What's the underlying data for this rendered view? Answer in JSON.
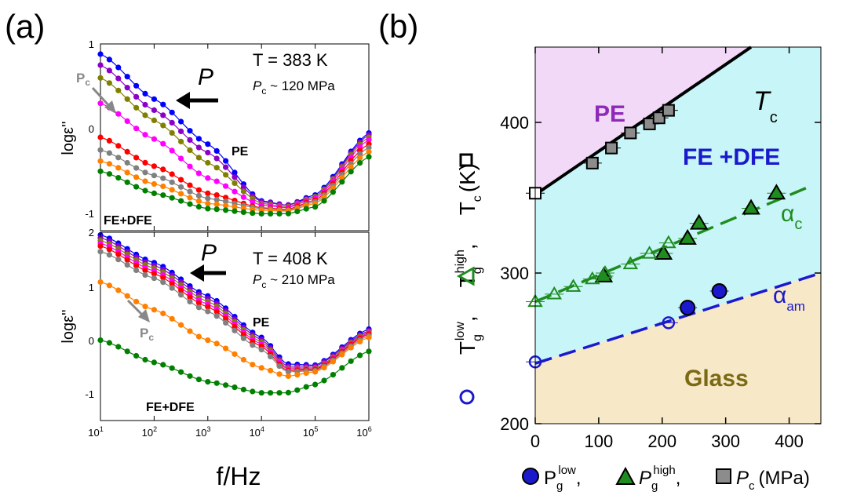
{
  "panel_labels": {
    "a": "(a)",
    "b": "(b)"
  },
  "colors": {
    "pe_region": "#f2d9f7",
    "fe_region": "#c8f5f7",
    "glass_region": "#f7e8c8",
    "alpha_c": "#1e8c1e",
    "alpha_am": "#1a1acc",
    "pc_series": "#8c8c8c",
    "label_pe": "#8e2ab8",
    "label_fe": "#1a1acc",
    "label_glass": "#7a6a14",
    "arrow_gray": "#888888"
  },
  "panel_a": {
    "xlabel": "f/Hz",
    "ylabel": "logε''",
    "x_ticks": [
      {
        "p": "10",
        "e": "1"
      },
      {
        "p": "10",
        "e": "2"
      },
      {
        "p": "10",
        "e": "3"
      },
      {
        "p": "10",
        "e": "4"
      },
      {
        "p": "10",
        "e": "5"
      },
      {
        "p": "10",
        "e": "6"
      }
    ],
    "top": {
      "temp": "T = 383 K",
      "p_symbol": "P",
      "pc_symbol": "P",
      "pc_sub": "c",
      "pc_value": " ~ 120 MPa",
      "arrow_label": "P",
      "arrow_label_sub": "c",
      "pe": "PE",
      "fe": "FE+DFE",
      "y_ticks": [
        "1",
        "0",
        "-1"
      ]
    },
    "bottom": {
      "temp": "T = 408 K",
      "p_symbol": "P",
      "pc_symbol": "P",
      "pc_sub": "c",
      "pc_value": " ~ 210 MPa",
      "arrow_label": "P",
      "arrow_label_sub": "c",
      "pe": "PE",
      "fe": "FE+DFE",
      "y_ticks": [
        "2",
        "1",
        "0",
        "-1"
      ]
    }
  },
  "panel_b": {
    "pe": "PE",
    "fe": "FE +DFE",
    "glass": "Glass",
    "tc_symbol": "T",
    "tc_sub": "c",
    "alpha_c": "α",
    "alpha_c_sub": "c",
    "alpha_am": "α",
    "alpha_am_sub": "am",
    "y_ticks": [
      "200",
      "300",
      "400"
    ],
    "x_ticks": [
      "0",
      "100",
      "200",
      "300",
      "400"
    ],
    "ylabel": {
      "t1": "T",
      "t1_sub": "g",
      "t1_sup": "low",
      "t2": "T",
      "t2_sub": "g",
      "t2_sup": "high",
      "t3": "T",
      "t3_sub": "c",
      "t3_unit": "(K)",
      "sep": ","
    },
    "xlabel": {
      "p1": "P",
      "p1_sub": "g",
      "p1_sup": "low",
      "p2": "P",
      "p2_sub": "g",
      "p2_sup": "high",
      "p3": "P",
      "p3_sub": "c",
      "unit": "(MPa)",
      "sep": ","
    }
  },
  "chart_data": [
    {
      "type": "line",
      "panel": "(a) top",
      "xlabel": "f/Hz",
      "ylabel": "logε''",
      "xscale": "log",
      "xlim": [
        10,
        1000000
      ],
      "ylim": [
        -1.2,
        1.0
      ],
      "annotations": [
        "T = 383 K",
        "P",
        "Pc ~ 120 MPa",
        "Pc",
        "PE",
        "FE+DFE"
      ],
      "series": [
        {
          "color": "#0000ff",
          "x": [
            10,
            100,
            1000,
            10000,
            30000,
            100000,
            1000000
          ],
          "y": [
            0.88,
            0.35,
            -0.18,
            -0.85,
            -0.9,
            -0.78,
            -0.05
          ]
        },
        {
          "color": "#8b00c9",
          "x": [
            10,
            100,
            1000,
            10000,
            30000,
            100000,
            1000000
          ],
          "y": [
            0.75,
            0.22,
            -0.28,
            -0.86,
            -0.9,
            -0.8,
            -0.07
          ]
        },
        {
          "color": "#808000",
          "x": [
            10,
            100,
            1000,
            10000,
            30000,
            100000,
            1000000
          ],
          "y": [
            0.6,
            0.1,
            -0.4,
            -0.88,
            -0.92,
            -0.8,
            -0.1
          ]
        },
        {
          "color": "#ff00ff",
          "x": [
            10,
            100,
            1000,
            10000,
            30000,
            100000,
            1000000
          ],
          "y": [
            0.3,
            -0.12,
            -0.58,
            -0.9,
            -0.93,
            -0.82,
            -0.13
          ]
        },
        {
          "color": "#ff0000",
          "x": [
            10,
            100,
            1000,
            10000,
            30000,
            100000,
            1000000
          ],
          "y": [
            -0.1,
            -0.44,
            -0.76,
            -0.93,
            -0.95,
            -0.84,
            -0.18
          ]
        },
        {
          "color": "#808080",
          "x": [
            10,
            100,
            1000,
            10000,
            30000,
            100000,
            1000000
          ],
          "y": [
            -0.25,
            -0.55,
            -0.82,
            -0.94,
            -0.96,
            -0.86,
            -0.22
          ]
        },
        {
          "color": "#ff8000",
          "x": [
            10,
            100,
            1000,
            10000,
            30000,
            100000,
            1000000
          ],
          "y": [
            -0.38,
            -0.65,
            -0.88,
            -0.96,
            -0.97,
            -0.88,
            -0.27
          ]
        },
        {
          "color": "#008000",
          "x": [
            10,
            100,
            1000,
            10000,
            30000,
            100000,
            1000000
          ],
          "y": [
            -0.5,
            -0.76,
            -0.94,
            -1.0,
            -1.0,
            -0.92,
            -0.33
          ]
        }
      ]
    },
    {
      "type": "line",
      "panel": "(a) bottom",
      "xlabel": "f/Hz",
      "ylabel": "logε''",
      "xscale": "log",
      "xlim": [
        10,
        1000000
      ],
      "ylim": [
        -1.4,
        2.0
      ],
      "annotations": [
        "T = 408 K",
        "P",
        "Pc ~ 210 MPa",
        "Pc",
        "PE",
        "FE+DFE"
      ],
      "series": [
        {
          "color": "#0000ff",
          "x": [
            10,
            100,
            1000,
            10000,
            30000,
            100000,
            1000000
          ],
          "y": [
            1.95,
            1.45,
            0.85,
            0.1,
            -0.38,
            -0.4,
            0.25
          ]
        },
        {
          "color": "#8b00c9",
          "x": [
            10,
            100,
            1000,
            10000,
            30000,
            100000,
            1000000
          ],
          "y": [
            1.9,
            1.4,
            0.8,
            0.06,
            -0.42,
            -0.42,
            0.22
          ]
        },
        {
          "color": "#808000",
          "x": [
            10,
            100,
            1000,
            10000,
            30000,
            100000,
            1000000
          ],
          "y": [
            1.85,
            1.35,
            0.75,
            0.02,
            -0.45,
            -0.45,
            0.2
          ]
        },
        {
          "color": "#ff00ff",
          "x": [
            10,
            100,
            1000,
            10000,
            30000,
            100000,
            1000000
          ],
          "y": [
            1.8,
            1.3,
            0.7,
            -0.02,
            -0.47,
            -0.47,
            0.18
          ]
        },
        {
          "color": "#ff0000",
          "x": [
            10,
            100,
            1000,
            10000,
            30000,
            100000,
            1000000
          ],
          "y": [
            1.75,
            1.25,
            0.65,
            -0.06,
            -0.5,
            -0.48,
            0.16
          ]
        },
        {
          "color": "#808080",
          "x": [
            10,
            100,
            1000,
            10000,
            30000,
            100000,
            1000000
          ],
          "y": [
            1.65,
            1.17,
            0.57,
            -0.12,
            -0.52,
            -0.5,
            0.13
          ]
        },
        {
          "color": "#ff8000",
          "x": [
            10,
            100,
            1000,
            10000,
            30000,
            100000,
            1000000
          ],
          "y": [
            1.1,
            0.6,
            0.05,
            -0.45,
            -0.6,
            -0.52,
            0.1
          ]
        },
        {
          "color": "#008000",
          "x": [
            10,
            100,
            1000,
            10000,
            30000,
            100000,
            1000000
          ],
          "y": [
            0.05,
            -0.35,
            -0.7,
            -0.9,
            -0.9,
            -0.75,
            -0.15
          ]
        }
      ]
    },
    {
      "type": "scatter",
      "panel": "(b)",
      "xlabel": "Pglow, Pghigh, Pc (MPa)",
      "ylabel": "Tglow, Tghigh, Tc (K)",
      "xlim": [
        0,
        450
      ],
      "ylim": [
        200,
        450
      ],
      "regions": [
        "PE",
        "FE +DFE",
        "Glass"
      ],
      "annotations": [
        "Tc",
        "αc",
        "αam"
      ],
      "series": [
        {
          "marker": "square",
          "filled": true,
          "color": "#8c8c8c",
          "x": [
            90,
            120,
            150,
            180,
            195,
            210
          ],
          "y": [
            373,
            383,
            393,
            399,
            403,
            408
          ]
        },
        {
          "marker": "square",
          "filled": false,
          "color": "#000000",
          "x": [
            0
          ],
          "y": [
            353
          ]
        },
        {
          "marker": "triangle",
          "filled": true,
          "color": "#1e8c1e",
          "x": [
            108,
            202,
            240,
            258,
            340,
            380
          ],
          "y": [
            298,
            313,
            323,
            333,
            343,
            353
          ]
        },
        {
          "marker": "triangle",
          "filled": false,
          "color": "#1e8c1e",
          "x": [
            0,
            30,
            60,
            90,
            110,
            150,
            180,
            210
          ],
          "y": [
            281,
            286,
            291,
            296,
            300,
            306,
            313,
            320
          ]
        },
        {
          "marker": "circle",
          "filled": true,
          "color": "#1a1acc",
          "x": [
            240,
            290
          ],
          "y": [
            277,
            288
          ]
        },
        {
          "marker": "circle",
          "filled": false,
          "color": "#1a1acc",
          "x": [
            0,
            210
          ],
          "y": [
            241,
            267
          ]
        },
        {
          "name": "Tc",
          "type": "line",
          "color": "#000000",
          "x": [
            0,
            340
          ],
          "y": [
            352,
            450
          ]
        },
        {
          "name": "αc",
          "type": "dash",
          "color": "#1e8c1e",
          "x": [
            0,
            430
          ],
          "y": [
            281,
            357
          ]
        },
        {
          "name": "αam",
          "type": "dash",
          "color": "#1a1acc",
          "x": [
            0,
            450
          ],
          "y": [
            240,
            300
          ]
        }
      ]
    }
  ]
}
